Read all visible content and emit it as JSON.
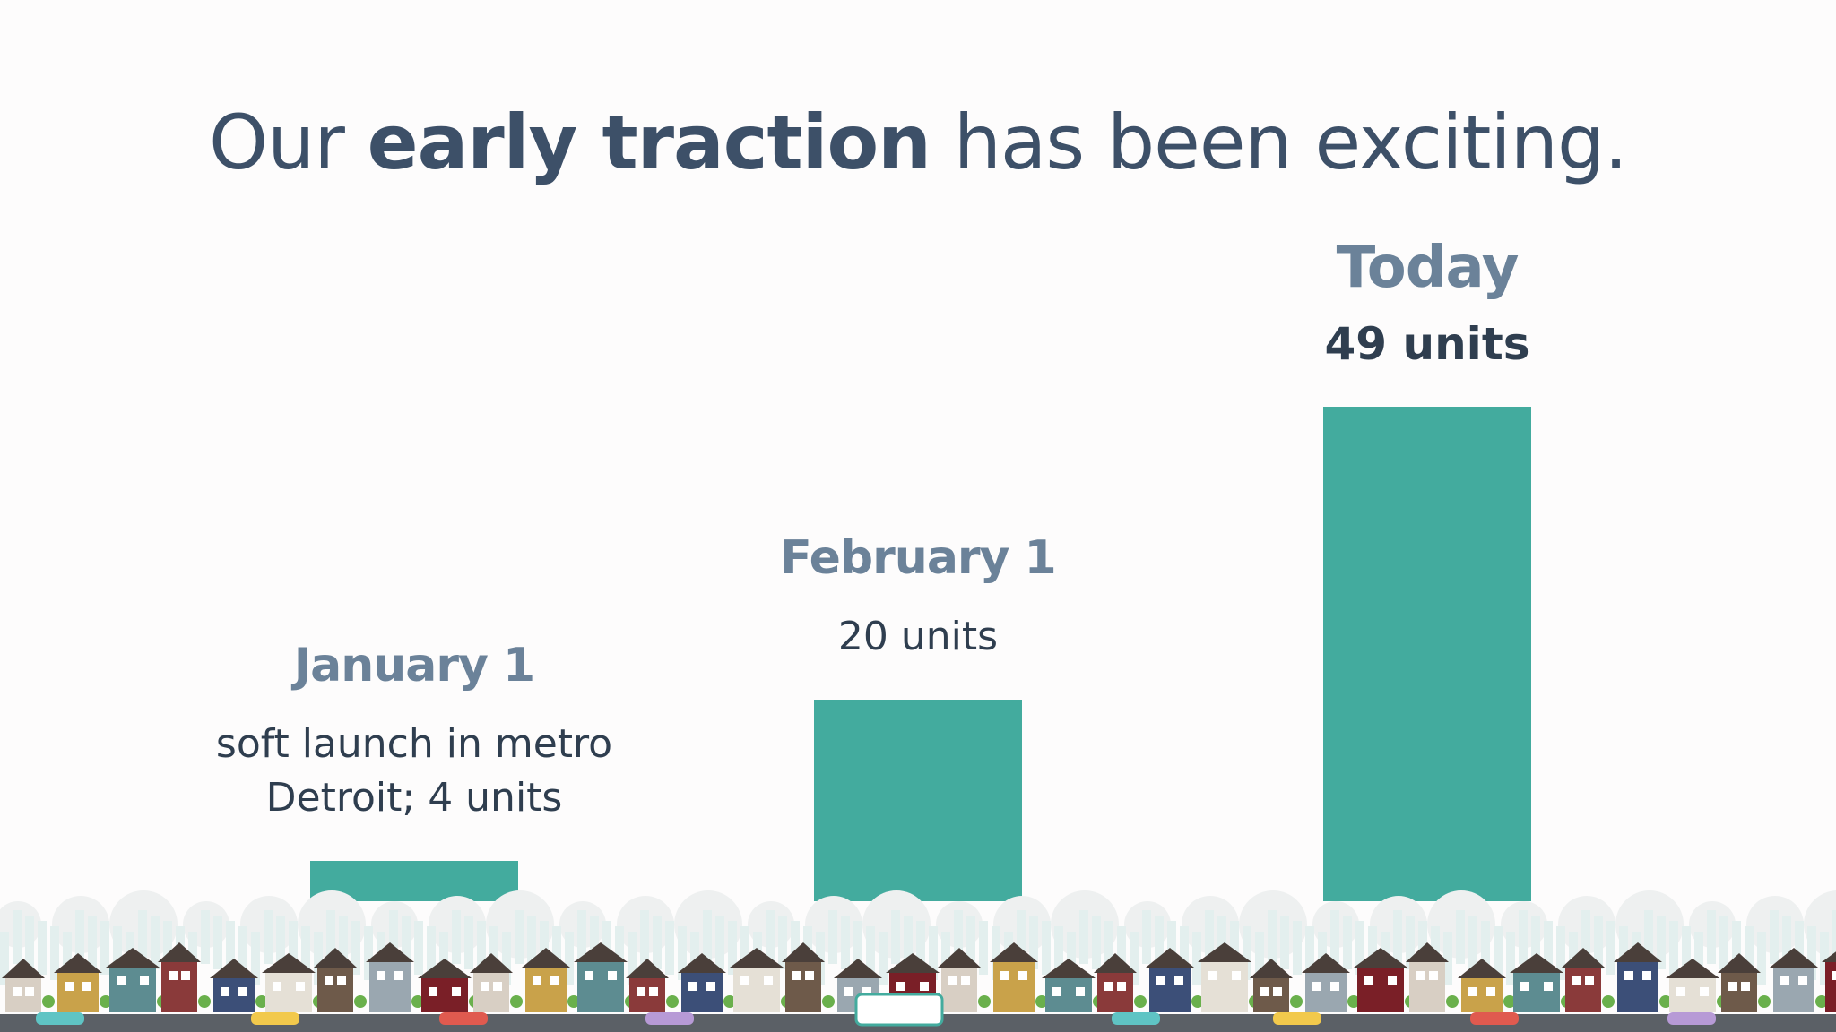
{
  "chart_data": {
    "type": "bar",
    "title": {
      "before": "Our",
      "bold": "early traction",
      "after": "has been exciting."
    },
    "categories": [
      "January 1",
      "February 1",
      "Today"
    ],
    "values": [
      4,
      20,
      49
    ],
    "value_labels": [
      "soft launch in metro Detroit; 4 units",
      "20 units",
      "49 units"
    ],
    "color": "#43ab9e"
  }
}
